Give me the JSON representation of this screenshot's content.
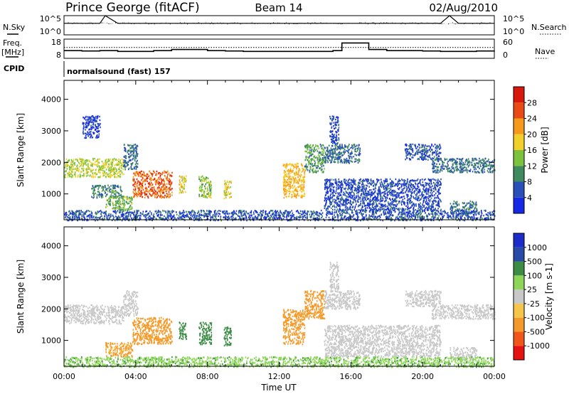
{
  "header": {
    "station": "Prince George (fitACF)",
    "beam": "Beam 14",
    "date": "02/Aug/2010"
  },
  "labels": {
    "nsky": "N.Sky",
    "nsearch": "N.Search",
    "freq_line1": "Freq.",
    "freq_line2": "[MHz]",
    "nave": "Nave",
    "cpid": "CPID",
    "cpid_value": "normalsound (fast) 157"
  },
  "colors": {
    "power_scale": [
      "#1428e6",
      "#2a4fb8",
      "#3f8a5e",
      "#7cc23c",
      "#f2cf2a",
      "#f59a1c",
      "#ea4a16",
      "#d8180c"
    ],
    "velocity_scale": [
      "#e61212",
      "#f0561a",
      "#f49a2a",
      "#f5c64a",
      "#c8c8c8",
      "#8ed65a",
      "#3c8c46",
      "#2a4aa8",
      "#1c2cc8"
    ],
    "ground_scatter": "#c8c8c8"
  },
  "chart_data": [
    {
      "type": "line",
      "name": "noise",
      "x": [
        0,
        2,
        2.3,
        3,
        5,
        8,
        12,
        15,
        15.9,
        16,
        18,
        21,
        21.5,
        22,
        24
      ],
      "values": [
        1000,
        1000,
        100000,
        1000,
        1000,
        1000,
        1000,
        1000,
        1000,
        1000,
        1000,
        1000,
        100000,
        1000,
        1000
      ],
      "ytick_labels": [
        "10^5",
        "10^0"
      ],
      "y2tick_labels": [
        "10^5",
        "10^0"
      ]
    },
    {
      "type": "line",
      "name": "frequency",
      "x": [
        0,
        1,
        2,
        3,
        4,
        5,
        6,
        7,
        8,
        9,
        10,
        11,
        12,
        13,
        14,
        15,
        15.5,
        16.4,
        17,
        18,
        19,
        20,
        21,
        22,
        23,
        24
      ],
      "frequency_mhz": [
        12,
        11.8,
        12,
        11.6,
        11.6,
        12,
        12.6,
        12.6,
        12,
        11.8,
        11.6,
        11.6,
        11.6,
        11.6,
        11.6,
        12,
        16,
        16,
        12.6,
        12,
        12,
        11.8,
        11.6,
        11.6,
        11.8,
        12
      ],
      "nave": 34,
      "ytick_labels": [
        "18",
        "8"
      ],
      "y2tick_labels": [
        "60",
        "0"
      ]
    },
    {
      "type": "heatmap",
      "name": "power",
      "ylabel": "Slant Range [km]",
      "ylim": [
        180,
        4600
      ],
      "yticks": [
        1000,
        2000,
        3000,
        4000
      ],
      "colorbar_label": "Power [dB]",
      "colorbar_ticks": [
        "4",
        "8",
        "12",
        "16",
        "20",
        "24",
        "28"
      ],
      "colorbar_range": [
        0,
        32
      ],
      "regions": [
        {
          "t0": 0,
          "t1": 3.3,
          "r0": 1550,
          "r1": 2150,
          "dB": 16
        },
        {
          "t0": 3.3,
          "t1": 4.1,
          "r0": 1800,
          "r1": 2600,
          "dB": 8
        },
        {
          "t0": 1.5,
          "t1": 3.2,
          "r0": 900,
          "r1": 1300,
          "dB": 9
        },
        {
          "t0": 2.3,
          "t1": 3.8,
          "r0": 500,
          "r1": 950,
          "dB": 13
        },
        {
          "t0": 3.8,
          "t1": 6.0,
          "r0": 900,
          "r1": 1750,
          "dB": 25
        },
        {
          "t0": 6.4,
          "t1": 6.8,
          "r0": 1050,
          "r1": 1600,
          "dB": 18
        },
        {
          "t0": 7.5,
          "t1": 8.2,
          "r0": 900,
          "r1": 1600,
          "dB": 14
        },
        {
          "t0": 8.9,
          "t1": 9.3,
          "r0": 850,
          "r1": 1450,
          "dB": 17
        },
        {
          "t0": 12.2,
          "t1": 13.4,
          "r0": 900,
          "r1": 2000,
          "dB": 20
        },
        {
          "t0": 13.4,
          "t1": 14.5,
          "r0": 1700,
          "r1": 2600,
          "dB": 11
        },
        {
          "t0": 14.5,
          "t1": 16.5,
          "r0": 2000,
          "r1": 2600,
          "dB": 8
        },
        {
          "t0": 14.5,
          "t1": 21,
          "r0": 500,
          "r1": 1500,
          "dB": 5
        },
        {
          "t0": 19,
          "t1": 21,
          "r0": 2100,
          "r1": 2600,
          "dB": 6
        },
        {
          "t0": 20.5,
          "t1": 24,
          "r0": 1700,
          "r1": 2150,
          "dB": 8
        },
        {
          "t0": 21.5,
          "t1": 23,
          "r0": 400,
          "r1": 800,
          "dB": 9
        },
        {
          "t0": 0,
          "t1": 24,
          "r0": 180,
          "r1": 500,
          "dB": 6
        },
        {
          "t0": 14.8,
          "t1": 15.3,
          "r0": 2600,
          "r1": 3500,
          "dB": 5
        },
        {
          "t0": 1,
          "t1": 2,
          "r0": 2800,
          "r1": 3500,
          "dB": 4
        }
      ]
    },
    {
      "type": "heatmap",
      "name": "velocity",
      "ylabel": "Slant Range [km]",
      "xlabel": "Time UT",
      "ylim": [
        180,
        4600
      ],
      "yticks": [
        1000,
        2000,
        3000,
        4000
      ],
      "xticks": [
        "00:00",
        "04:00",
        "08:00",
        "12:00",
        "16:00",
        "20:00",
        "00:00"
      ],
      "colorbar_label": "Velocity [m s-1]",
      "colorbar_ticks": [
        "-1000",
        "-500",
        "-100",
        "-25",
        "25",
        "100",
        "500",
        "1000"
      ],
      "regions": [
        {
          "t0": 0,
          "t1": 3.3,
          "r0": 1550,
          "r1": 2150,
          "v": "gs"
        },
        {
          "t0": 3.3,
          "t1": 4.1,
          "r0": 1800,
          "r1": 2600,
          "v": "gs"
        },
        {
          "t0": 2.3,
          "t1": 3.8,
          "r0": 500,
          "r1": 950,
          "v": -120
        },
        {
          "t0": 3.8,
          "t1": 6.0,
          "r0": 900,
          "r1": 1750,
          "v": -150
        },
        {
          "t0": 6.4,
          "t1": 6.8,
          "r0": 1050,
          "r1": 1600,
          "v": 300
        },
        {
          "t0": 7.5,
          "t1": 8.2,
          "r0": 900,
          "r1": 1600,
          "v": 300
        },
        {
          "t0": 8.9,
          "t1": 9.3,
          "r0": 850,
          "r1": 1450,
          "v": 300
        },
        {
          "t0": 12.2,
          "t1": 13.4,
          "r0": 900,
          "r1": 2000,
          "v": -200
        },
        {
          "t0": 13.4,
          "t1": 14.5,
          "r0": 1700,
          "r1": 2600,
          "v": -200
        },
        {
          "t0": 14.5,
          "t1": 16.5,
          "r0": 2000,
          "r1": 2600,
          "v": "gs"
        },
        {
          "t0": 14.5,
          "t1": 21,
          "r0": 500,
          "r1": 1500,
          "v": "gs"
        },
        {
          "t0": 19,
          "t1": 21,
          "r0": 2100,
          "r1": 2600,
          "v": "gs"
        },
        {
          "t0": 20.5,
          "t1": 24,
          "r0": 1700,
          "r1": 2150,
          "v": "gs"
        },
        {
          "t0": 21.5,
          "t1": 23,
          "r0": 400,
          "r1": 800,
          "v": "gs"
        },
        {
          "t0": 0,
          "t1": 24,
          "r0": 180,
          "r1": 500,
          "v": 80
        },
        {
          "t0": 14.8,
          "t1": 15.3,
          "r0": 2600,
          "r1": 3500,
          "v": "gs"
        }
      ]
    }
  ]
}
